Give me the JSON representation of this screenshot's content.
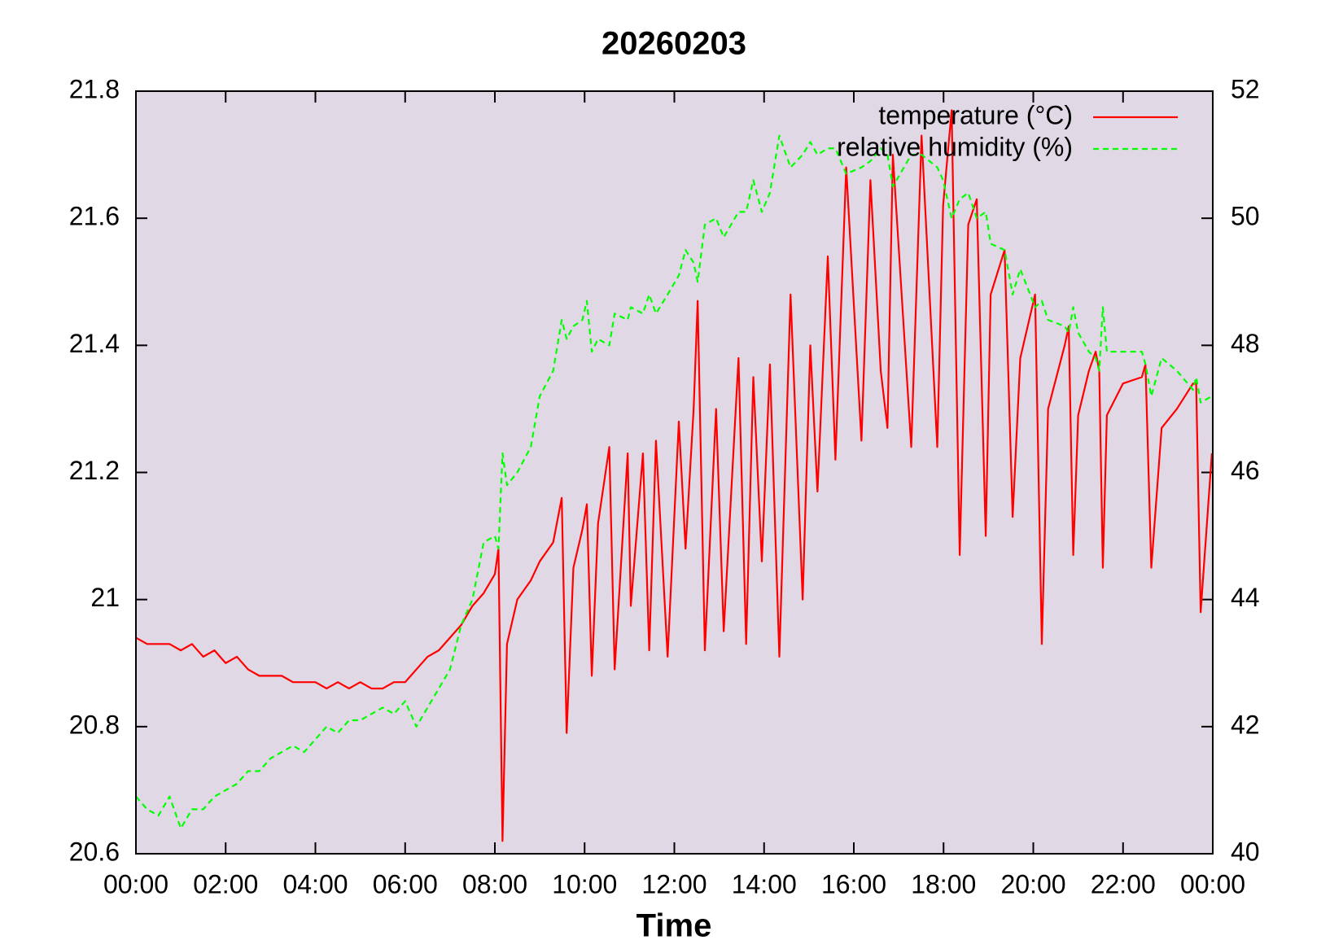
{
  "chart_data": {
    "type": "line",
    "title": "20260203",
    "xlabel": "Time",
    "x": [
      0,
      0.25,
      0.5,
      0.75,
      1,
      1.25,
      1.5,
      1.75,
      2,
      2.25,
      2.5,
      2.75,
      3,
      3.25,
      3.5,
      3.75,
      4,
      4.25,
      4.5,
      4.75,
      5,
      5.25,
      5.5,
      5.75,
      6,
      6.25,
      6.5,
      6.75,
      7,
      7.25,
      7.5,
      7.75,
      8,
      8.08,
      8.17,
      8.27,
      8.5,
      8.8,
      9.0,
      9.3,
      9.49,
      9.6,
      9.75,
      9.95,
      10.05,
      10.16,
      10.3,
      10.55,
      10.67,
      10.96,
      11.03,
      11.3,
      11.44,
      11.59,
      11.85,
      12.1,
      12.25,
      12.43,
      12.52,
      12.68,
      12.93,
      13.1,
      13.43,
      13.6,
      13.76,
      13.95,
      14.13,
      14.34,
      14.59,
      14.86,
      15.03,
      15.19,
      15.42,
      15.59,
      15.83,
      16.17,
      16.37,
      16.6,
      16.75,
      16.87,
      17.28,
      17.51,
      17.86,
      17.99,
      18.18,
      18.36,
      18.55,
      18.74,
      18.94,
      19.05,
      19.36,
      19.54,
      19.71,
      20.04,
      20.19,
      20.33,
      20.7,
      20.79,
      20.89,
      21.0,
      21.24,
      21.39,
      21.47,
      21.55,
      21.64,
      22.0,
      22.42,
      22.5,
      22.63,
      22.86,
      23.2,
      23.56,
      23.63,
      23.73,
      23.98
    ],
    "series": [
      {
        "name": "temperature (°C)",
        "color": "#ff0000",
        "line_style": "solid",
        "values": [
          20.94,
          20.93,
          20.93,
          20.93,
          20.92,
          20.93,
          20.91,
          20.92,
          20.9,
          20.91,
          20.89,
          20.88,
          20.88,
          20.88,
          20.87,
          20.87,
          20.87,
          20.86,
          20.87,
          20.86,
          20.87,
          20.86,
          20.86,
          20.87,
          20.87,
          20.89,
          20.91,
          20.92,
          20.94,
          20.96,
          20.99,
          21.01,
          21.04,
          21.08,
          20.62,
          20.93,
          21.0,
          21.03,
          21.06,
          21.09,
          21.16,
          20.79,
          21.05,
          21.11,
          21.15,
          20.88,
          21.12,
          21.24,
          20.89,
          21.23,
          20.99,
          21.23,
          20.92,
          21.25,
          20.91,
          21.28,
          21.08,
          21.3,
          21.47,
          20.92,
          21.3,
          20.95,
          21.38,
          20.93,
          21.35,
          21.06,
          21.37,
          20.91,
          21.48,
          21.0,
          21.4,
          21.17,
          21.54,
          21.22,
          21.68,
          21.25,
          21.66,
          21.36,
          21.27,
          21.7,
          21.24,
          21.73,
          21.24,
          21.62,
          21.77,
          21.07,
          21.59,
          21.63,
          21.1,
          21.48,
          21.55,
          21.13,
          21.38,
          21.48,
          20.93,
          21.3,
          21.4,
          21.43,
          21.07,
          21.29,
          21.36,
          21.39,
          21.36,
          21.05,
          21.29,
          21.34,
          21.35,
          21.37,
          21.05,
          21.27,
          21.3,
          21.34,
          21.34,
          20.98,
          21.23
        ]
      },
      {
        "name": "relative humidity (%)",
        "color": "#00ff00",
        "line_style": "dashed",
        "axis": "y2",
        "values": [
          40.9,
          40.7,
          40.6,
          40.9,
          40.4,
          40.7,
          40.7,
          40.9,
          41.0,
          41.1,
          41.3,
          41.3,
          41.5,
          41.6,
          41.7,
          41.6,
          41.8,
          42.0,
          41.9,
          42.1,
          42.1,
          42.2,
          42.3,
          42.2,
          42.4,
          42.0,
          42.3,
          42.6,
          42.9,
          43.6,
          44.0,
          44.9,
          45.0,
          44.8,
          46.3,
          45.8,
          46.0,
          46.4,
          47.2,
          47.6,
          48.4,
          48.1,
          48.3,
          48.4,
          48.7,
          47.9,
          48.1,
          48.0,
          48.5,
          48.4,
          48.6,
          48.5,
          48.8,
          48.5,
          48.8,
          49.1,
          49.5,
          49.3,
          49.0,
          49.9,
          50.0,
          49.7,
          50.1,
          50.1,
          50.6,
          50.1,
          50.4,
          51.3,
          50.8,
          51.0,
          51.2,
          51.0,
          51.1,
          51.1,
          50.7,
          50.8,
          50.9,
          51.1,
          51.0,
          50.5,
          51.0,
          51.0,
          50.8,
          50.6,
          50.0,
          50.3,
          50.4,
          50.0,
          50.1,
          49.6,
          49.5,
          48.8,
          49.2,
          48.6,
          48.7,
          48.4,
          48.3,
          48.2,
          48.6,
          48.2,
          47.9,
          47.8,
          47.6,
          48.6,
          47.9,
          47.9,
          47.9,
          47.7,
          47.2,
          47.8,
          47.6,
          47.3,
          47.5,
          47.1,
          47.2
        ]
      }
    ],
    "xlim": [
      0,
      24
    ],
    "xticks": [
      {
        "value": 0,
        "label": "00:00"
      },
      {
        "value": 2,
        "label": "02:00"
      },
      {
        "value": 4,
        "label": "04:00"
      },
      {
        "value": 6,
        "label": "06:00"
      },
      {
        "value": 8,
        "label": "08:00"
      },
      {
        "value": 10,
        "label": "10:00"
      },
      {
        "value": 12,
        "label": "12:00"
      },
      {
        "value": 14,
        "label": "14:00"
      },
      {
        "value": 16,
        "label": "16:00"
      },
      {
        "value": 18,
        "label": "18:00"
      },
      {
        "value": 20,
        "label": "20:00"
      },
      {
        "value": 22,
        "label": "22:00"
      },
      {
        "value": 24,
        "label": "00:00"
      }
    ],
    "ylim": [
      20.6,
      21.8
    ],
    "yticks": [
      20.6,
      20.8,
      21,
      21.2,
      21.4,
      21.6,
      21.8
    ],
    "y2lim": [
      40,
      52
    ],
    "y2ticks": [
      40,
      42,
      44,
      46,
      48,
      50,
      52
    ],
    "grid": false,
    "legend": "top-right",
    "background": "#e0d9e5"
  }
}
